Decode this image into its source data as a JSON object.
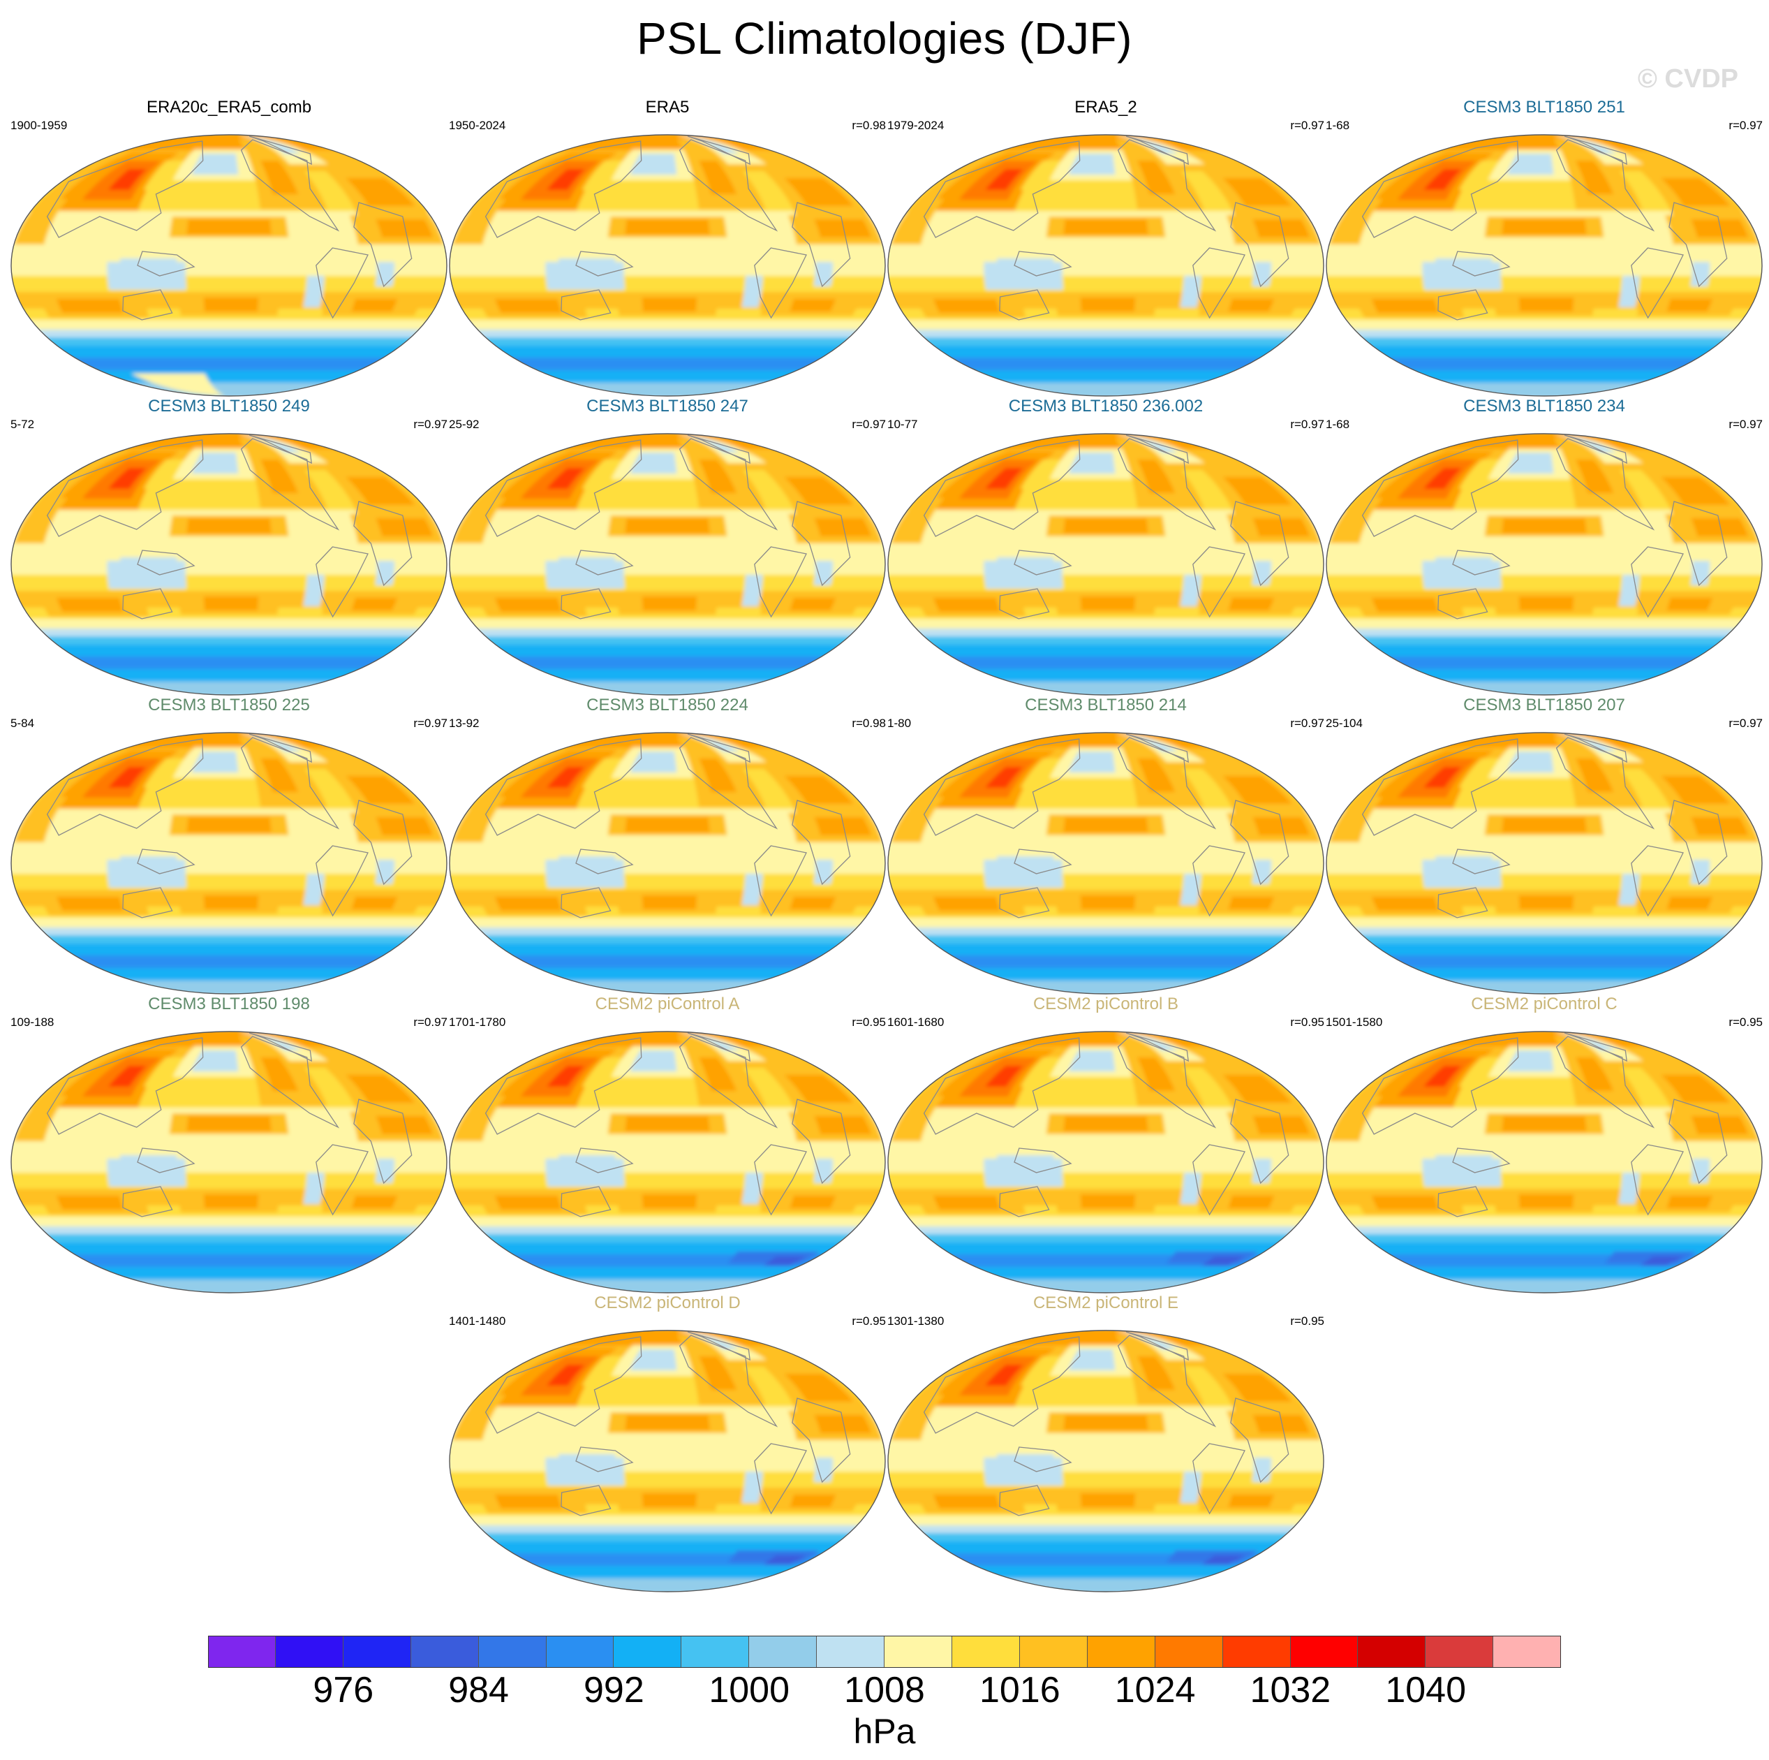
{
  "title": "PSL Climatologies (DJF)",
  "watermark": "© CVDP",
  "panels": [
    {
      "title": "ERA20c_ERA5_comb",
      "years": "1900-1959",
      "r": "",
      "title_color": "#000000",
      "southern_blue": 1.05
    },
    {
      "title": "ERA5",
      "years": "1950-2024",
      "r": "r=0.98",
      "title_color": "#000000",
      "southern_blue": 1.0
    },
    {
      "title": "ERA5_2",
      "years": "1979-2024",
      "r": "r=0.97",
      "title_color": "#000000",
      "southern_blue": 1.0
    },
    {
      "title": "CESM3 BLT1850 251",
      "years": "1-68",
      "r": "r=0.97",
      "title_color": "#1c6c96",
      "southern_blue": 1.0
    },
    {
      "title": "CESM3 BLT1850 249",
      "years": "5-72",
      "r": "r=0.97",
      "title_color": "#1c6c96",
      "southern_blue": 1.0
    },
    {
      "title": "CESM3 BLT1850 247",
      "years": "25-92",
      "r": "r=0.97",
      "title_color": "#1c6c96",
      "southern_blue": 1.0
    },
    {
      "title": "CESM3 BLT1850 236.002",
      "years": "10-77",
      "r": "r=0.97",
      "title_color": "#1c6c96",
      "southern_blue": 1.0
    },
    {
      "title": "CESM3 BLT1850 234",
      "years": "1-68",
      "r": "r=0.97",
      "title_color": "#1c6c96",
      "southern_blue": 1.0
    },
    {
      "title": "CESM3 BLT1850 225",
      "years": "5-84",
      "r": "r=0.97",
      "title_color": "#5f8b6b",
      "southern_blue": 1.0
    },
    {
      "title": "CESM3 BLT1850 224",
      "years": "13-92",
      "r": "r=0.98",
      "title_color": "#5f8b6b",
      "southern_blue": 1.0
    },
    {
      "title": "CESM3 BLT1850 214",
      "years": "1-80",
      "r": "r=0.97",
      "title_color": "#5f8b6b",
      "southern_blue": 1.0
    },
    {
      "title": "CESM3 BLT1850 207",
      "years": "25-104",
      "r": "r=0.97",
      "title_color": "#5f8b6b",
      "southern_blue": 1.0
    },
    {
      "title": "CESM3 BLT1850 198",
      "years": "109-188",
      "r": "r=0.97",
      "title_color": "#5f8b6b",
      "southern_blue": 1.0
    },
    {
      "title": "CESM2 piControl A",
      "years": "1701-1780",
      "r": "r=0.95",
      "title_color": "#c9b577",
      "southern_blue": 1.1
    },
    {
      "title": "CESM2 piControl B",
      "years": "1601-1680",
      "r": "r=0.95",
      "title_color": "#c9b577",
      "southern_blue": 1.1
    },
    {
      "title": "CESM2 piControl C",
      "years": "1501-1580",
      "r": "r=0.95",
      "title_color": "#c9b577",
      "southern_blue": 1.1
    },
    {
      "title": "CESM2 piControl D",
      "years": "1401-1480",
      "r": "r=0.95",
      "title_color": "#c9b577",
      "southern_blue": 1.1
    },
    {
      "title": "CESM2 piControl E",
      "years": "1301-1380",
      "r": "r=0.95",
      "title_color": "#c9b577",
      "southern_blue": 1.1
    }
  ],
  "colorbar": {
    "units": "hPa",
    "colors": [
      "#7f26ee",
      "#3010f5",
      "#1f25f5",
      "#3a5cdc",
      "#3377e8",
      "#2a8ff2",
      "#13b0f5",
      "#45c2f2",
      "#93cdea",
      "#bfe1f2",
      "#fff6a6",
      "#ffde3c",
      "#ffc021",
      "#ffa200",
      "#ff7a00",
      "#ff3c00",
      "#ff0000",
      "#d40000",
      "#da3b3b",
      "#ffb1b1"
    ],
    "labels": [
      "976",
      "984",
      "992",
      "1000",
      "1008",
      "1016",
      "1024",
      "1032",
      "1040"
    ],
    "label_boundaries": [
      2,
      4,
      6,
      8,
      10,
      12,
      14,
      16,
      18
    ]
  }
}
